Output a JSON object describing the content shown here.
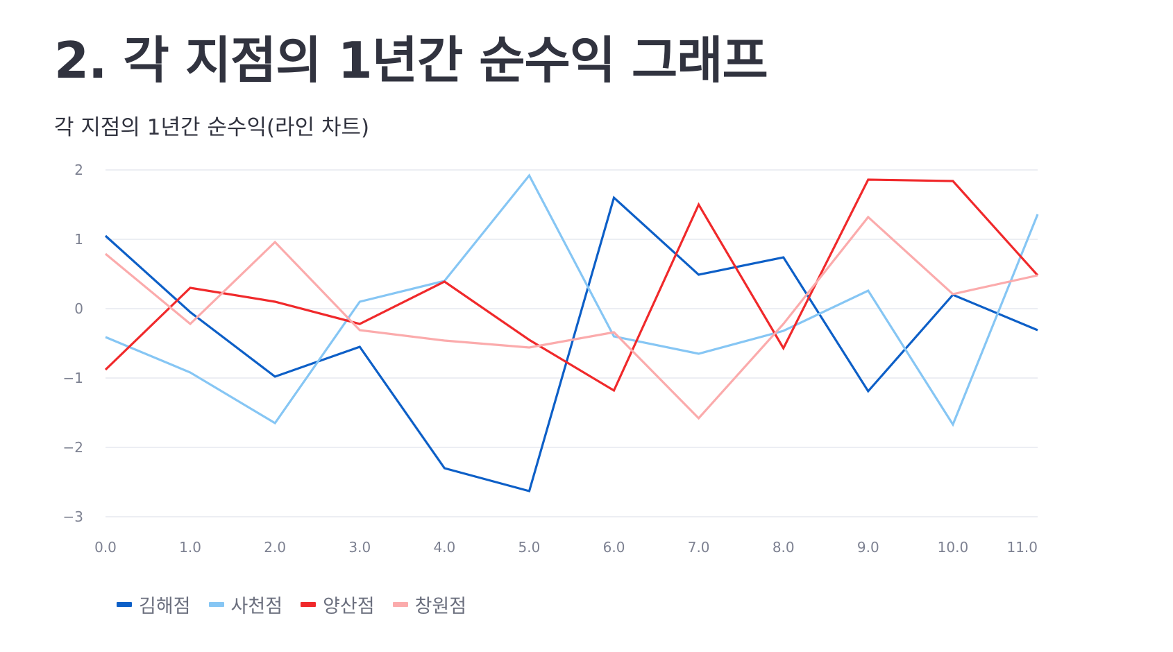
{
  "page": {
    "title": "2. 각 지점의 1년간 순수익 그래프",
    "subtitle": "각 지점의 1년간 순수익(라인 차트)"
  },
  "chart_data": {
    "type": "line",
    "title": "",
    "xlabel": "",
    "ylabel": "",
    "x": [
      0.0,
      1.0,
      2.0,
      3.0,
      4.0,
      5.0,
      6.0,
      7.0,
      8.0,
      9.0,
      10.0,
      11.0
    ],
    "x_tick_labels": [
      "0.0",
      "1.0",
      "2.0",
      "3.0",
      "4.0",
      "5.0",
      "6.0",
      "7.0",
      "8.0",
      "9.0",
      "10.0",
      "11.0"
    ],
    "y_ticks": [
      2,
      1,
      0,
      -1,
      -2,
      -3
    ],
    "y_tick_labels": [
      "2",
      "1",
      "0",
      "−1",
      "−2",
      "−3"
    ],
    "xlim": [
      0,
      11
    ],
    "ylim": [
      -3.05,
      2.05
    ],
    "grid": "horizontal",
    "legend_position": "bottom-left",
    "series": [
      {
        "name": "김해점",
        "color": "#0d5fc7",
        "values": [
          1.05,
          -0.05,
          -0.98,
          -0.55,
          -2.3,
          -2.63,
          1.6,
          0.49,
          0.74,
          -1.19,
          0.2,
          -0.31
        ]
      },
      {
        "name": "사천점",
        "color": "#86c6f4",
        "values": [
          -0.41,
          -0.92,
          -1.65,
          0.1,
          0.4,
          1.92,
          -0.4,
          -0.65,
          -0.32,
          0.26,
          -1.67,
          1.36
        ]
      },
      {
        "name": "양산점",
        "color": "#f0292b",
        "values": [
          -0.88,
          0.3,
          0.1,
          -0.22,
          0.39,
          -0.45,
          -1.18,
          1.5,
          -0.57,
          1.86,
          1.84,
          0.48
        ]
      },
      {
        "name": "창원점",
        "color": "#fbabac",
        "values": [
          0.79,
          -0.22,
          0.96,
          -0.31,
          -0.46,
          -0.56,
          -0.34,
          -1.58,
          -0.22,
          1.32,
          0.21,
          0.48
        ]
      }
    ]
  }
}
